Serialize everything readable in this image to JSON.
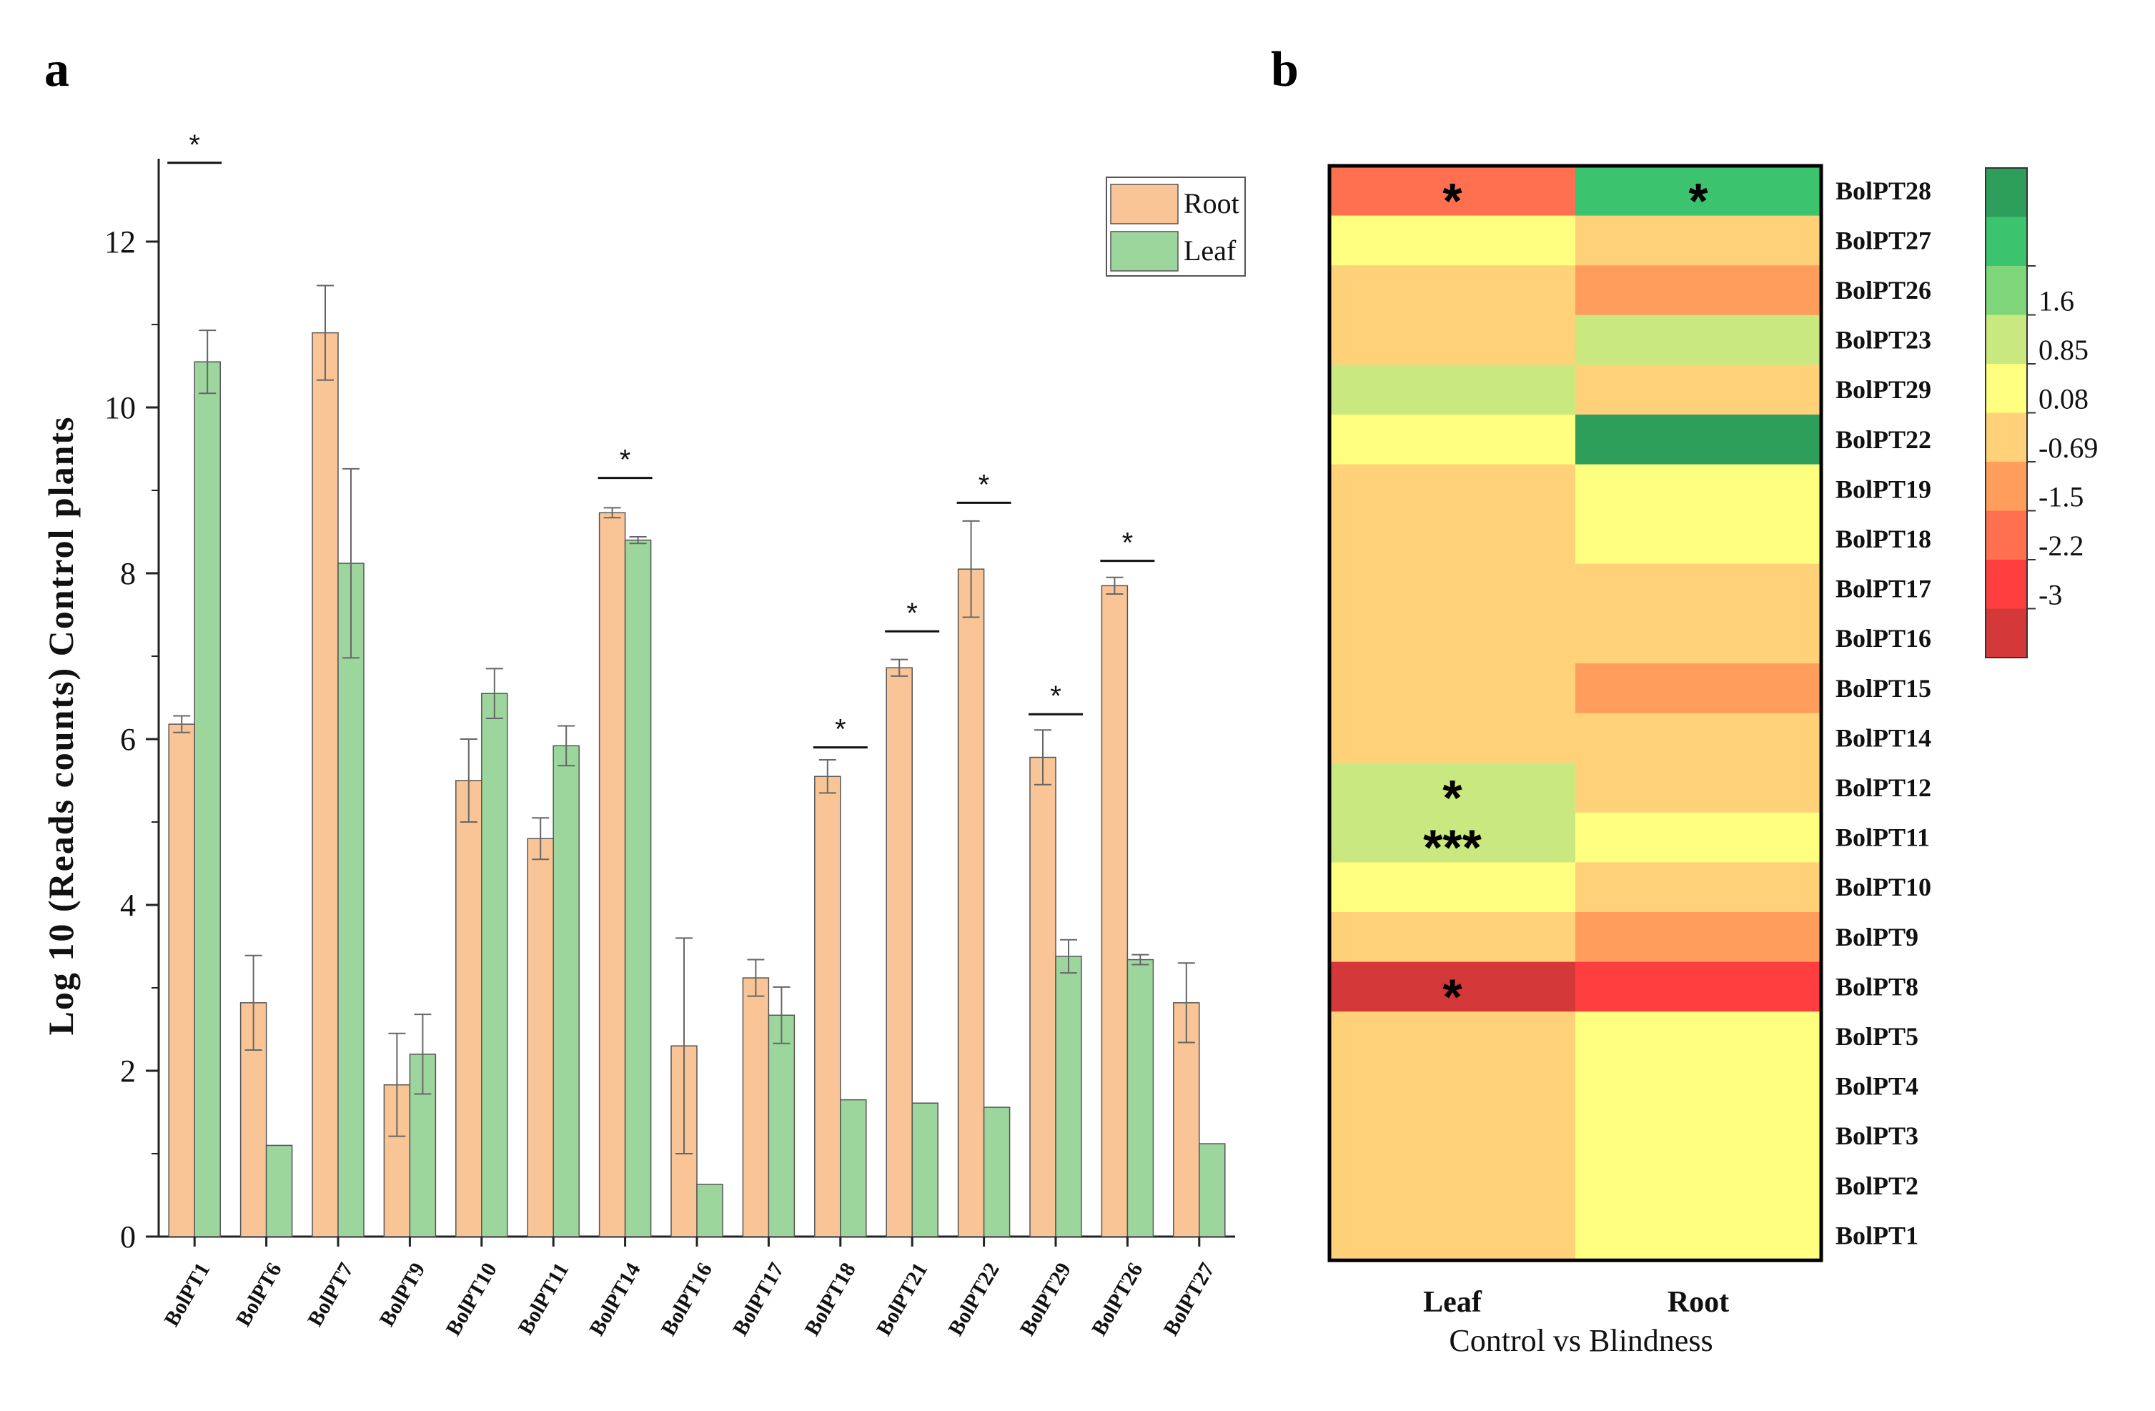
{
  "panel_a_letter": "a",
  "panel_b_letter": "b",
  "chart_data": [
    {
      "type": "bar",
      "title": "",
      "xlabel": "",
      "ylabel": "Log 10 (Reads counts) Control plants",
      "ylim": [
        0,
        13
      ],
      "yticks": [
        0,
        2,
        4,
        6,
        8,
        10,
        12
      ],
      "ytick_labels": [
        "0",
        "2",
        "4",
        "6",
        "8",
        "10",
        "12"
      ],
      "categories": [
        "BolPT1",
        "BolPT6",
        "BolPT7",
        "BolPT9",
        "BolPT10",
        "BolPT11",
        "BolPT14",
        "BolPT16",
        "BolPT17",
        "BolPT18",
        "BolPT21",
        "BolPT22",
        "BolPT29",
        "BolPT26",
        "BolPT27"
      ],
      "series": [
        {
          "name": "Root",
          "color": "#f9c596",
          "values": [
            6.18,
            2.82,
            10.9,
            1.83,
            5.5,
            4.8,
            8.73,
            2.3,
            3.12,
            5.55,
            6.86,
            8.05,
            5.78,
            7.85,
            2.82
          ],
          "errors": [
            0.1,
            0.57,
            0.57,
            0.62,
            0.5,
            0.25,
            0.06,
            1.3,
            0.22,
            0.2,
            0.1,
            0.58,
            0.33,
            0.1,
            0.48
          ]
        },
        {
          "name": "Leaf",
          "color": "#9dd69d",
          "values": [
            10.55,
            1.1,
            8.12,
            2.2,
            6.55,
            5.92,
            8.4,
            0.63,
            2.67,
            1.65,
            1.61,
            1.56,
            3.38,
            3.34,
            1.12
          ],
          "errors": [
            0.38,
            0,
            1.14,
            0.48,
            0.3,
            0.24,
            0.04,
            0,
            0.34,
            0,
            0,
            0,
            0.2,
            0.06,
            0
          ]
        }
      ],
      "significance_label": "*",
      "significant_categories": [
        "BolPT1",
        "BolPT14",
        "BolPT18",
        "BolPT21",
        "BolPT22",
        "BolPT29",
        "BolPT26"
      ],
      "significance_levels": [
        12.95,
        9.15,
        5.9,
        7.3,
        8.85,
        6.3,
        8.15
      ],
      "legend": "top-right"
    },
    {
      "type": "heatmap",
      "xlabel": "Control vs Blindness",
      "columns": [
        "Leaf",
        "Root"
      ],
      "rows": [
        "BolPT28",
        "BolPT27",
        "BolPT26",
        "BolPT23",
        "BolPT29",
        "BolPT22",
        "BolPT19",
        "BolPT18",
        "BolPT17",
        "BolPT16",
        "BolPT15",
        "BolPT14",
        "BolPT12",
        "BolPT11",
        "BolPT10",
        "BolPT9",
        "BolPT8",
        "BolPT5",
        "BolPT4",
        "BolPT3",
        "BolPT2",
        "BolPT1"
      ],
      "values": [
        [
          -1.9,
          1.9
        ],
        [
          0.2,
          -0.4
        ],
        [
          -0.4,
          -1.2
        ],
        [
          -0.4,
          1.2
        ],
        [
          1.2,
          -0.4
        ],
        [
          0.2,
          2.6
        ],
        [
          -0.4,
          0.2
        ],
        [
          -0.4,
          0.2
        ],
        [
          -0.4,
          -0.4
        ],
        [
          -0.4,
          -0.4
        ],
        [
          -0.4,
          -1.2
        ],
        [
          -0.4,
          -0.4
        ],
        [
          1.2,
          -0.4
        ],
        [
          1.2,
          0.2
        ],
        [
          0.2,
          -0.4
        ],
        [
          -0.4,
          -1.2
        ],
        [
          -3.3,
          -2.6
        ],
        [
          -0.4,
          0.2
        ],
        [
          -0.4,
          0.2
        ],
        [
          -0.4,
          0.2
        ],
        [
          -0.4,
          0.2
        ],
        [
          -0.4,
          0.2
        ]
      ],
      "annotations": [
        {
          "row": "BolPT28",
          "col": "Leaf",
          "text": "*"
        },
        {
          "row": "BolPT28",
          "col": "Root",
          "text": "*"
        },
        {
          "row": "BolPT12",
          "col": "Leaf",
          "text": "*"
        },
        {
          "row": "BolPT11",
          "col": "Leaf",
          "text": "***"
        },
        {
          "row": "BolPT8",
          "col": "Leaf",
          "text": "*"
        }
      ],
      "colorbar": {
        "labels": [
          "1.6",
          "0.85",
          "0.08",
          "-0.69",
          "-1.5",
          "-2.2",
          "-3"
        ],
        "colors": [
          "#2e9e5b",
          "#3cc36e",
          "#7fd67a",
          "#c9e87f",
          "#ffff80",
          "#ffd27a",
          "#ff9e5c",
          "#ff7050",
          "#ff3f3f",
          "#d43838"
        ]
      }
    }
  ]
}
